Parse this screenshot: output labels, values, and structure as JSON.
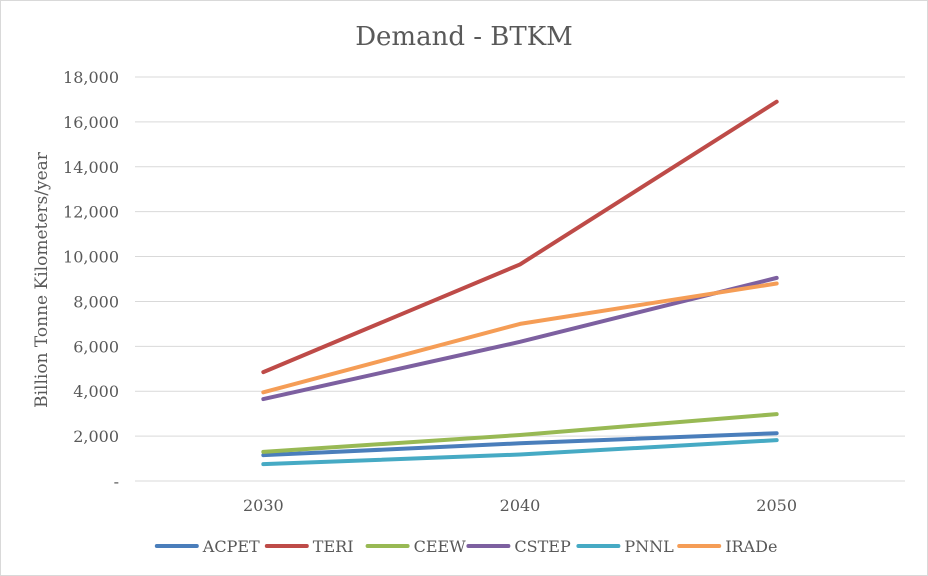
{
  "chart_data": {
    "type": "line",
    "title": "Demand - BTKM",
    "xlabel": "",
    "ylabel": "Billion Tonne Kilometers/year",
    "categories": [
      "2030",
      "2040",
      "2050"
    ],
    "ylim": [
      0,
      18000
    ],
    "yticks": [
      0,
      2000,
      4000,
      6000,
      8000,
      10000,
      12000,
      14000,
      16000,
      18000
    ],
    "ytick_labels": [
      "-",
      "2,000",
      "4,000",
      "6,000",
      "8,000",
      "10,000",
      "12,000",
      "14,000",
      "16,000",
      "18,000"
    ],
    "grid": true,
    "legend_position": "bottom",
    "series": [
      {
        "name": "ACPET",
        "color": "#4a7ebb",
        "values": [
          1150,
          1680,
          2130
        ]
      },
      {
        "name": "TERI",
        "color": "#be4b48",
        "values": [
          4850,
          9650,
          16900
        ]
      },
      {
        "name": "CEEW",
        "color": "#98b954",
        "values": [
          1300,
          2050,
          2980
        ]
      },
      {
        "name": "CSTEP",
        "color": "#7d60a0",
        "values": [
          3650,
          6200,
          9050
        ]
      },
      {
        "name": "PNNL",
        "color": "#46aac4",
        "values": [
          750,
          1180,
          1820
        ]
      },
      {
        "name": "IRADe",
        "color": "#f59d56",
        "values": [
          3950,
          7000,
          8800
        ]
      }
    ]
  }
}
